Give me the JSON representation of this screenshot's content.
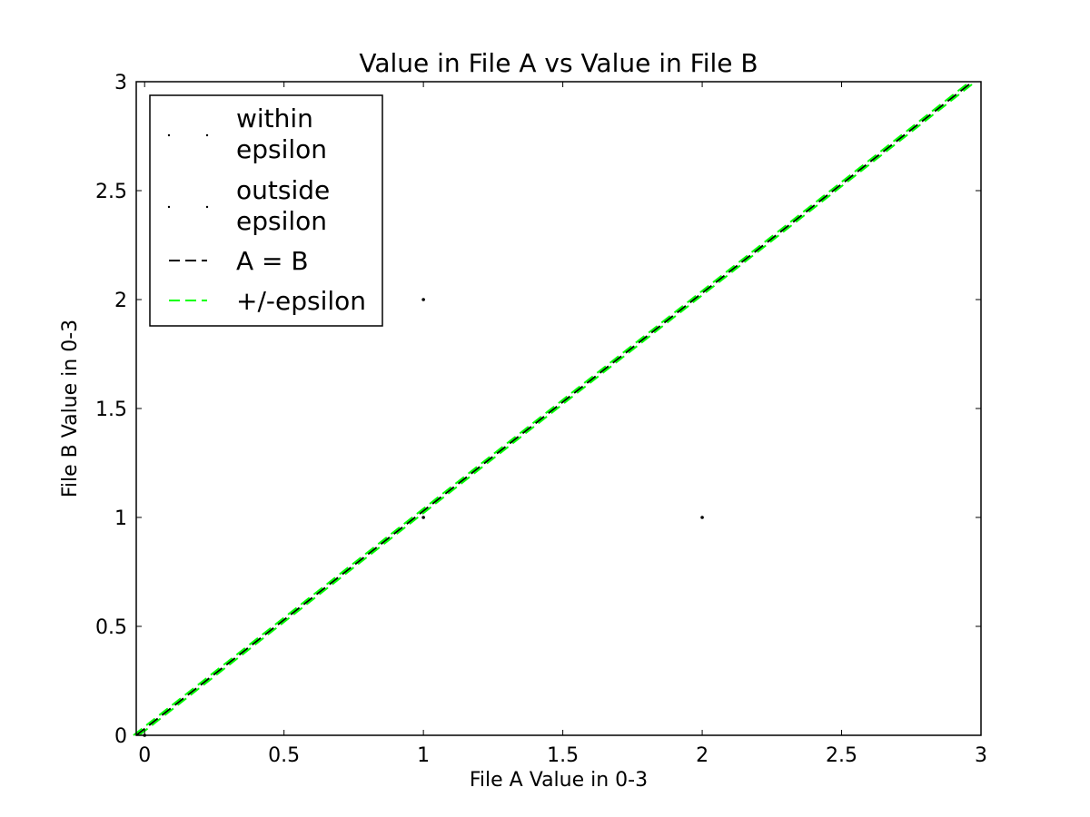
{
  "chart_data": {
    "type": "scatter",
    "title": "Value in File A vs Value in File B",
    "xlabel": "File A Value in 0-3",
    "ylabel": "File B Value in 0-3",
    "xlim": [
      -0.03,
      3
    ],
    "ylim": [
      0,
      3
    ],
    "x_ticks": [
      0,
      0.5,
      1,
      1.5,
      2,
      2.5,
      3
    ],
    "x_tick_labels": [
      "0",
      "0.5",
      "1",
      "1.5",
      "2",
      "2.5",
      "3"
    ],
    "y_ticks": [
      0,
      0.5,
      1,
      1.5,
      2,
      2.5,
      3
    ],
    "y_tick_labels": [
      "0",
      "0.5",
      "1",
      "1.5",
      "2",
      "2.5",
      "3"
    ],
    "grid": false,
    "legend_position": "top-left",
    "series": [
      {
        "name": "within epsilon",
        "kind": "points",
        "color": "#000000",
        "points": [
          {
            "x": 0,
            "y": 0
          },
          {
            "x": 1,
            "y": 1
          }
        ]
      },
      {
        "name": "outside epsilon",
        "kind": "points",
        "color": "#000000",
        "points": [
          {
            "x": 1,
            "y": 2
          },
          {
            "x": 2,
            "y": 1
          }
        ]
      },
      {
        "name": "A = B",
        "kind": "dashed-line",
        "color": "#000000",
        "points": [
          {
            "x": -0.03,
            "y": 0
          },
          {
            "x": 2.97,
            "y": 3
          }
        ]
      },
      {
        "name": "+/-epsilon",
        "kind": "dashed-line",
        "color": "#00ff00",
        "lines": [
          [
            {
              "x": -0.04,
              "y": 0
            },
            {
              "x": 2.96,
              "y": 3
            }
          ],
          [
            {
              "x": -0.02,
              "y": 0
            },
            {
              "x": 2.98,
              "y": 3
            }
          ]
        ]
      }
    ],
    "legend": [
      {
        "label_lines": [
          "within",
          "epsilon"
        ],
        "kind": "points",
        "color": "#000000"
      },
      {
        "label_lines": [
          "outside",
          "epsilon"
        ],
        "kind": "points",
        "color": "#000000"
      },
      {
        "label_lines": [
          "A = B"
        ],
        "kind": "dashed-line",
        "color": "#000000"
      },
      {
        "label_lines": [
          "+/-epsilon"
        ],
        "kind": "dashed-line",
        "color": "#00ff00"
      }
    ]
  }
}
